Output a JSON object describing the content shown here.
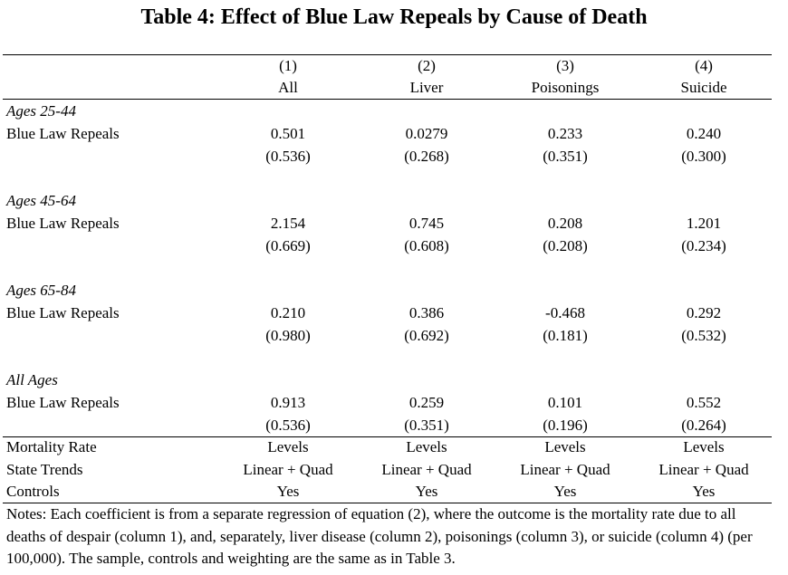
{
  "title": "Table 4: Effect of Blue Law Repeals by Cause of Death",
  "columns": [
    {
      "num": "(1)",
      "label": "All"
    },
    {
      "num": "(2)",
      "label": "Liver"
    },
    {
      "num": "(3)",
      "label": "Poisonings"
    },
    {
      "num": "(4)",
      "label": "Suicide"
    }
  ],
  "panels": [
    {
      "group": "Ages 25-44",
      "row_label": "Blue Law Repeals",
      "coef": [
        "0.501",
        "0.0279",
        "0.233",
        "0.240"
      ],
      "se": [
        "(0.536)",
        "(0.268)",
        "(0.351)",
        "(0.300)"
      ]
    },
    {
      "group": "Ages 45-64",
      "row_label": "Blue Law Repeals",
      "coef": [
        "2.154",
        "0.745",
        "0.208",
        "1.201"
      ],
      "se": [
        "(0.669)",
        "(0.608)",
        "(0.208)",
        "(0.234)"
      ]
    },
    {
      "group": "Ages 65-84",
      "row_label": "Blue Law Repeals",
      "coef": [
        "0.210",
        "0.386",
        "-0.468",
        "0.292"
      ],
      "se": [
        "(0.980)",
        "(0.692)",
        "(0.181)",
        "(0.532)"
      ]
    },
    {
      "group": "All Ages",
      "row_label": "Blue Law Repeals",
      "coef": [
        "0.913",
        "0.259",
        "0.101",
        "0.552"
      ],
      "se": [
        "(0.536)",
        "(0.351)",
        "(0.196)",
        "(0.264)"
      ]
    }
  ],
  "footer_rows": [
    {
      "label": "Mortality Rate",
      "values": [
        "Levels",
        "Levels",
        "Levels",
        "Levels"
      ]
    },
    {
      "label": "State Trends",
      "values": [
        "Linear + Quad",
        "Linear + Quad",
        "Linear + Quad",
        "Linear + Quad"
      ]
    },
    {
      "label": "Controls",
      "values": [
        "Yes",
        "Yes",
        "Yes",
        "Yes"
      ]
    }
  ],
  "notes": "Notes: Each coefficient is from a separate regression of equation (2), where the outcome is the mortality rate due to all deaths of despair (column 1), and, separately, liver disease (column 2),  poisonings (column 3), or suicide (column 4) (per 100,000).  The sample, controls and weighting are the same as in Table 3."
}
